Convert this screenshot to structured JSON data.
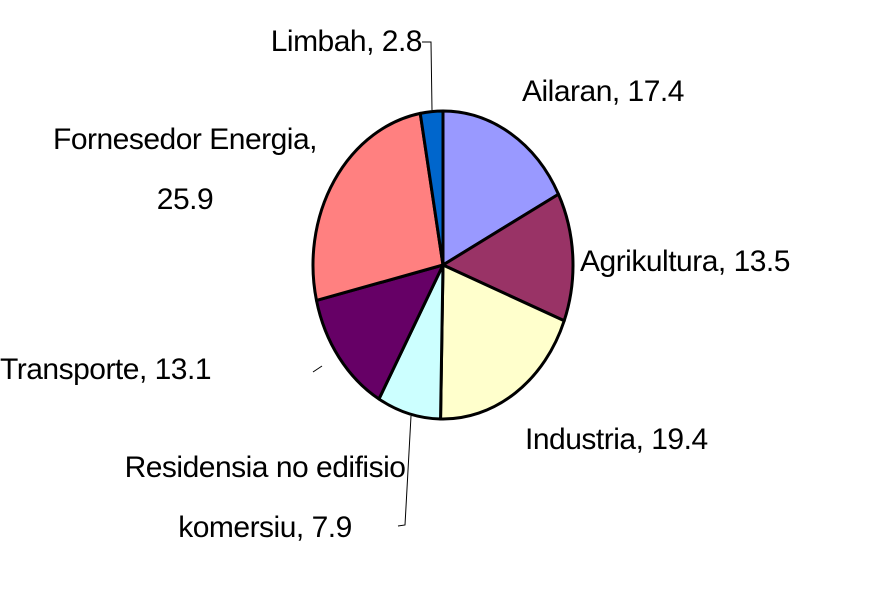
{
  "chart_data": {
    "type": "pie",
    "labels": [
      "Ailaran, 17.4",
      "Agrikultura, 13.5",
      "Industria, 19.4",
      "Residensia no edifisio komersiu, 7.9",
      "Transporte, 13.1",
      "Fornesedor Energia, 25.9",
      "Limbah, 2.8"
    ],
    "values": [
      17.4,
      13.5,
      19.4,
      7.9,
      13.1,
      25.9,
      2.8
    ],
    "colors": [
      "#9999ff",
      "#993366",
      "#ffffcc",
      "#ccffff",
      "#660066",
      "#ff8080",
      "#0066cc"
    ]
  }
}
